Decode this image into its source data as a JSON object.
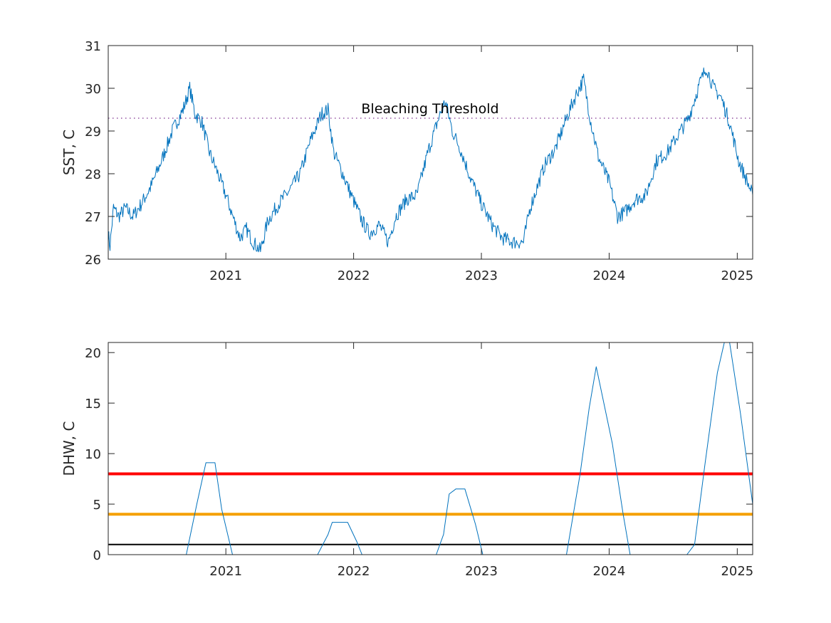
{
  "chart_data": [
    {
      "type": "line",
      "title": "",
      "xlabel": "",
      "ylabel": "SST, C",
      "xlim": [
        "2020-01-31",
        "2025-02-14"
      ],
      "ylim": [
        26,
        31
      ],
      "xticks": [
        "2021",
        "2022",
        "2023",
        "2024",
        "2025"
      ],
      "yticks": [
        "26",
        "27",
        "28",
        "29",
        "30",
        "31"
      ],
      "grid": false,
      "series": [
        {
          "color": "#0072BD",
          "points": [
            [
              "2020-01-31",
              26.6
            ],
            [
              "2020-02-05",
              26.3
            ],
            [
              "2020-02-15",
              27.2
            ],
            [
              "2020-03-01",
              27.0
            ],
            [
              "2020-03-20",
              27.2
            ],
            [
              "2020-04-10",
              27.0
            ],
            [
              "2020-05-05",
              27.3
            ],
            [
              "2020-06-01",
              27.7
            ],
            [
              "2020-07-01",
              28.3
            ],
            [
              "2020-08-01",
              29.0
            ],
            [
              "2020-09-01",
              29.5
            ],
            [
              "2020-09-20",
              30.0
            ],
            [
              "2020-10-05",
              29.4
            ],
            [
              "2020-10-25",
              29.2
            ],
            [
              "2020-11-15",
              28.5
            ],
            [
              "2020-12-05",
              28.1
            ],
            [
              "2021-01-01",
              27.5
            ],
            [
              "2021-01-25",
              26.9
            ],
            [
              "2021-02-10",
              26.5
            ],
            [
              "2021-03-01",
              26.7
            ],
            [
              "2021-03-20",
              26.4
            ],
            [
              "2021-04-10",
              26.2
            ],
            [
              "2021-05-01",
              26.9
            ],
            [
              "2021-06-01",
              27.3
            ],
            [
              "2021-07-01",
              27.6
            ],
            [
              "2021-08-01",
              28.0
            ],
            [
              "2021-09-01",
              28.8
            ],
            [
              "2021-10-01",
              29.4
            ],
            [
              "2021-10-20",
              29.5
            ],
            [
              "2021-11-05",
              28.5
            ],
            [
              "2021-12-01",
              28.0
            ],
            [
              "2021-12-25",
              27.5
            ],
            [
              "2022-01-25",
              26.9
            ],
            [
              "2022-02-15",
              26.6
            ],
            [
              "2022-03-15",
              26.8
            ],
            [
              "2022-04-10",
              26.4
            ],
            [
              "2022-05-01",
              27.0
            ],
            [
              "2022-06-01",
              27.4
            ],
            [
              "2022-07-01",
              27.5
            ],
            [
              "2022-08-01",
              28.5
            ],
            [
              "2022-09-01",
              29.3
            ],
            [
              "2022-09-20",
              29.7
            ],
            [
              "2022-10-10",
              29.0
            ],
            [
              "2022-11-01",
              28.6
            ],
            [
              "2022-12-01",
              27.9
            ],
            [
              "2023-01-01",
              27.3
            ],
            [
              "2023-02-01",
              26.8
            ],
            [
              "2023-03-01",
              26.5
            ],
            [
              "2023-04-01",
              26.4
            ],
            [
              "2023-05-01",
              26.4
            ],
            [
              "2023-05-20",
              27.2
            ],
            [
              "2023-07-01",
              28.2
            ],
            [
              "2023-08-01",
              28.6
            ],
            [
              "2023-09-01",
              29.3
            ],
            [
              "2023-10-01",
              29.9
            ],
            [
              "2023-10-20",
              30.2
            ],
            [
              "2023-11-10",
              29.2
            ],
            [
              "2023-12-01",
              28.4
            ],
            [
              "2024-01-01",
              27.8
            ],
            [
              "2024-01-25",
              27.0
            ],
            [
              "2024-02-15",
              27.1
            ],
            [
              "2024-03-15",
              27.4
            ],
            [
              "2024-04-15",
              27.5
            ],
            [
              "2024-05-15",
              28.3
            ],
            [
              "2024-06-15",
              28.5
            ],
            [
              "2024-07-15",
              28.9
            ],
            [
              "2024-08-15",
              29.3
            ],
            [
              "2024-09-15",
              30.1
            ],
            [
              "2024-10-05",
              30.5
            ],
            [
              "2024-10-25",
              30.0
            ],
            [
              "2024-11-15",
              29.8
            ],
            [
              "2024-12-10",
              29.2
            ],
            [
              "2025-01-05",
              28.3
            ],
            [
              "2025-01-25",
              27.9
            ],
            [
              "2025-02-14",
              27.5
            ]
          ]
        }
      ],
      "annotations": [
        {
          "text": "Bleaching Threshold",
          "y": 29.3,
          "style": "dotted",
          "color": "#7E2F8E"
        }
      ]
    },
    {
      "type": "line",
      "title": "",
      "xlabel": "",
      "ylabel": "DHW, C",
      "xlim": [
        "2020-01-31",
        "2025-02-14"
      ],
      "ylim": [
        0,
        21
      ],
      "xticks": [
        "2021",
        "2022",
        "2023",
        "2024",
        "2025"
      ],
      "yticks": [
        "0",
        "5",
        "10",
        "15",
        "20"
      ],
      "grid": false,
      "series": [
        {
          "color": "#0072BD",
          "points": [
            [
              "2020-01-31",
              0
            ],
            [
              "2020-09-10",
              0
            ],
            [
              "2020-10-10",
              5
            ],
            [
              "2020-11-05",
              9.1
            ],
            [
              "2020-12-01",
              9.1
            ],
            [
              "2020-12-20",
              4.5
            ],
            [
              "2021-01-20",
              0
            ],
            [
              "2021-09-20",
              0
            ],
            [
              "2021-10-20",
              2.0
            ],
            [
              "2021-11-01",
              3.2
            ],
            [
              "2021-12-15",
              3.2
            ],
            [
              "2022-01-10",
              1.3
            ],
            [
              "2022-01-25",
              0
            ],
            [
              "2022-08-25",
              0
            ],
            [
              "2022-09-15",
              2.0
            ],
            [
              "2022-10-01",
              6.0
            ],
            [
              "2022-10-20",
              6.5
            ],
            [
              "2022-11-15",
              6.5
            ],
            [
              "2022-12-15",
              3.0
            ],
            [
              "2023-01-05",
              0
            ],
            [
              "2023-09-01",
              0
            ],
            [
              "2023-10-10",
              8.0
            ],
            [
              "2023-11-05",
              14.5
            ],
            [
              "2023-11-25",
              18.6
            ],
            [
              "2024-01-10",
              11.0
            ],
            [
              "2024-02-10",
              4.0
            ],
            [
              "2024-03-01",
              0
            ],
            [
              "2024-08-10",
              0
            ],
            [
              "2024-09-01",
              1.0
            ],
            [
              "2024-10-01",
              9.0
            ],
            [
              "2024-11-05",
              18.0
            ],
            [
              "2024-11-25",
              21.0
            ],
            [
              "2024-12-10",
              21.0
            ],
            [
              "2025-01-10",
              14.0
            ],
            [
              "2025-02-14",
              5.0
            ]
          ]
        }
      ],
      "thresholds": [
        {
          "y": 8,
          "color": "#FF0000"
        },
        {
          "y": 4,
          "color": "#F5A000"
        },
        {
          "y": 1,
          "color": "#000000"
        }
      ]
    }
  ]
}
